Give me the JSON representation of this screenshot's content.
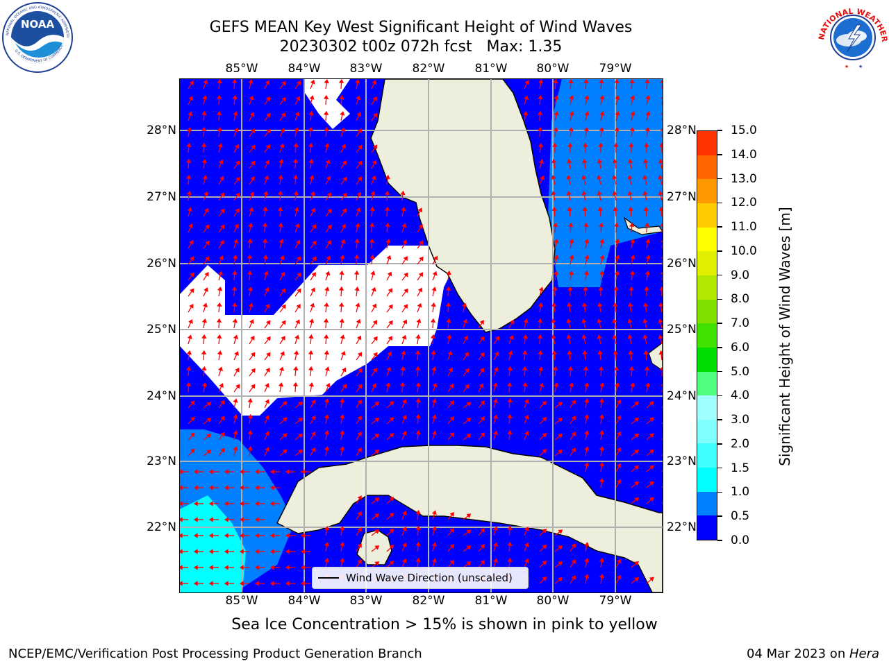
{
  "title": {
    "line1": "GEFS MEAN Key West Significant Height of Wind Waves",
    "line2": "20230302 t00z 072h fcst   Max: 1.35"
  },
  "logos": {
    "left": {
      "name": "NOAA",
      "ring_text": "NATIONAL OCEANIC AND ATMOSPHERIC ADMINISTRATION · U.S. DEPARTMENT OF COMMERCE"
    },
    "right": {
      "name": "NATIONAL WEATHER SERVICE"
    }
  },
  "map": {
    "lon_labels": [
      "85°W",
      "84°W",
      "83°W",
      "82°W",
      "81°W",
      "80°W",
      "79°W"
    ],
    "lat_labels": [
      "28°N",
      "27°N",
      "26°N",
      "25°N",
      "24°N",
      "23°N",
      "22°N"
    ],
    "colors": {
      "land": "#eeeedd",
      "ocean_low": "#0000ff",
      "ocean_mid": "#0080ff",
      "ocean_high": "#00ffff",
      "arrow": "#ff0000",
      "grid": "#b0b0b0"
    }
  },
  "colorbar": {
    "title": "Significant Height of Wind Waves [m]",
    "levels": [
      "0.0",
      "0.5",
      "1.0",
      "1.5",
      "2.0",
      "3.0",
      "4.0",
      "5.0",
      "6.0",
      "7.0",
      "8.0",
      "9.0",
      "10.0",
      "11.0",
      "12.0",
      "13.0",
      "14.0",
      "15.0"
    ],
    "colors": [
      "#0000ff",
      "#0080ff",
      "#00ffff",
      "#40ffff",
      "#80ffff",
      "#a0ffff",
      "#50ff80",
      "#00dd00",
      "#40e000",
      "#80e000",
      "#b0e800",
      "#e0f000",
      "#ffff00",
      "#ffcc00",
      "#ff9900",
      "#ff6600",
      "#ff3300",
      "#ff0000"
    ]
  },
  "legend": {
    "label": "Wind Wave Direction (unscaled)"
  },
  "caption": "Sea Ice Concentration > 15% is shown in pink to yellow",
  "footer": {
    "left": "NCEP/EMC/Verification Post Processing Product Generation Branch",
    "right_date": "04 Mar 2023 on ",
    "right_machine": "Hera"
  }
}
